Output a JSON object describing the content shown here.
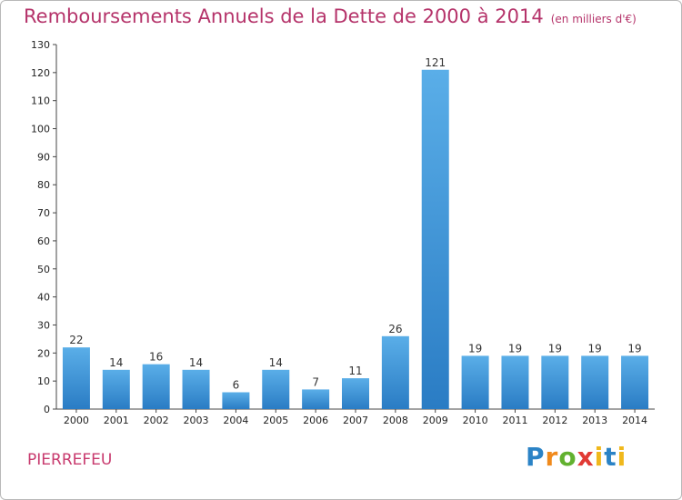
{
  "header": {
    "title": "Remboursements Annuels de la Dette de 2000 à 2014",
    "unit": "(en milliers d'€)"
  },
  "footer": {
    "place": "PIERREFEU",
    "logo": [
      "P",
      "r",
      "o",
      "x",
      "i",
      "t",
      "i"
    ]
  },
  "colors": {
    "title": "#b5336a",
    "bar_top": "#5aaee8",
    "bar_bottom": "#2a7cc4"
  },
  "chart_data": {
    "type": "bar",
    "title": "Remboursements Annuels de la Dette de 2000 à 2014",
    "categories": [
      "2000",
      "2001",
      "2002",
      "2003",
      "2004",
      "2005",
      "2006",
      "2007",
      "2008",
      "2009",
      "2010",
      "2011",
      "2012",
      "2013",
      "2014"
    ],
    "values": [
      22,
      14,
      16,
      14,
      6,
      14,
      7,
      11,
      26,
      121,
      19,
      19,
      19,
      19,
      19
    ],
    "ylim": [
      0,
      130
    ],
    "yticks": [
      0,
      10,
      20,
      30,
      40,
      50,
      60,
      70,
      80,
      90,
      100,
      110,
      120,
      130
    ],
    "grid": false
  }
}
